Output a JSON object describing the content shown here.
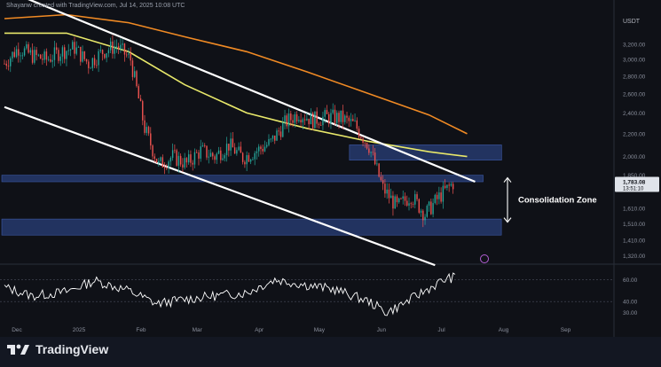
{
  "caption": "Shayanw created with TradingView.com, Jul 14, 2025 10:08 UTC",
  "brand": "TradingView",
  "currency_label": "USDT",
  "price_tag": {
    "price": "1,783.08",
    "countdown": "13:51:10"
  },
  "annotation": "Consolidation Zone",
  "colors": {
    "background": "#0f1117",
    "up": "#26a69a",
    "down": "#ef5350",
    "ma_long": "#f08a24",
    "ma_short": "#e8e86a",
    "channel": "#ffffff",
    "zone": "#2a3f7a",
    "rsi": "#ffffff"
  },
  "chart_data": [
    {
      "type": "candlestick",
      "title": "",
      "y_axis": {
        "scale": "log",
        "ticks": [
          1320,
          1410,
          1510,
          1610,
          1850,
          2000,
          2200,
          2400,
          2600,
          2800,
          3000,
          3200
        ],
        "tick_labels": [
          "1,320.00",
          "1,410.00",
          "1,510.00",
          "1,610.00",
          "1,850.00",
          "2,000.00",
          "2,200.00",
          "2,400.00",
          "2,600.00",
          "2,800.00",
          "3,000.00",
          "3,200.00"
        ]
      },
      "x_axis": {
        "start": "2024-12-01",
        "end": "2025-09-30",
        "ticks": [
          "2024-12-01",
          "2025-01-01",
          "2025-02-01",
          "2025-03-01",
          "2025-04-01",
          "2025-05-01",
          "2025-06-01",
          "2025-07-01",
          "2025-08-01",
          "2025-09-01"
        ],
        "tick_labels": [
          "Dec",
          "2025",
          "Feb",
          "Mar",
          "Apr",
          "May",
          "Jun",
          "Jul",
          "Aug",
          "Sep"
        ]
      },
      "closes": {
        "dates": [
          "2024-12-01",
          "2024-12-08",
          "2024-12-15",
          "2024-12-22",
          "2024-12-29",
          "2025-01-05",
          "2025-01-12",
          "2025-01-19",
          "2025-01-26",
          "2025-02-02",
          "2025-02-09",
          "2025-02-16",
          "2025-02-23",
          "2025-03-02",
          "2025-03-09",
          "2025-03-16",
          "2025-03-23",
          "2025-03-30",
          "2025-04-06",
          "2025-04-13",
          "2025-04-20",
          "2025-04-27",
          "2025-05-04",
          "2025-05-11",
          "2025-05-18",
          "2025-05-25",
          "2025-06-01",
          "2025-06-08",
          "2025-06-15",
          "2025-06-22",
          "2025-06-29",
          "2025-07-06",
          "2025-07-13"
        ],
        "values": [
          2950,
          3150,
          3050,
          3000,
          3100,
          3150,
          2950,
          3100,
          3180,
          3000,
          2250,
          1930,
          2000,
          1940,
          2050,
          2000,
          2100,
          1990,
          2050,
          2120,
          2300,
          2400,
          2330,
          2360,
          2350,
          2280,
          2090,
          1750,
          1620,
          1700,
          1570,
          1690,
          1790
        ]
      },
      "moving_averages": [
        {
          "dates": [
            "2024-12-01",
            "2025-01-01",
            "2025-02-01",
            "2025-03-01",
            "2025-04-01",
            "2025-05-01",
            "2025-06-01",
            "2025-07-01",
            "2025-07-20"
          ],
          "values": [
            3560,
            3620,
            3500,
            3300,
            3100,
            2850,
            2600,
            2380,
            2200
          ]
        },
        {
          "dates": [
            "2024-12-01",
            "2025-01-01",
            "2025-02-01",
            "2025-03-01",
            "2025-04-01",
            "2025-05-01",
            "2025-06-01",
            "2025-07-01",
            "2025-07-20"
          ],
          "values": [
            3350,
            3350,
            3100,
            2700,
            2400,
            2250,
            2130,
            2040,
            2000
          ]
        }
      ],
      "channel": {
        "upper": {
          "from": {
            "date": "2024-12-10",
            "price": 3900
          },
          "to": {
            "date": "2025-07-24",
            "price": 1800
          }
        },
        "lower": {
          "from": {
            "date": "2024-12-01",
            "price": 2460
          },
          "to": {
            "date": "2025-07-04",
            "price": 1270
          }
        }
      },
      "zones": [
        {
          "price_low": 1800,
          "price_high": 1850
        },
        {
          "price_low": 1970,
          "price_high": 2100
        },
        {
          "price_low": 1440,
          "price_high": 1540
        }
      ]
    },
    {
      "type": "line",
      "title": "",
      "y_axis": {
        "ticks": [
          30,
          40,
          60
        ],
        "tick_labels": [
          "30.00",
          "40.00",
          "60.00"
        ]
      },
      "x": [
        "2024-12-01",
        "2024-12-15",
        "2025-01-01",
        "2025-01-15",
        "2025-02-01",
        "2025-02-15",
        "2025-03-01",
        "2025-03-15",
        "2025-04-01",
        "2025-04-15",
        "2025-05-01",
        "2025-05-15",
        "2025-06-01",
        "2025-06-10",
        "2025-06-20",
        "2025-07-01",
        "2025-07-10",
        "2025-07-14"
      ],
      "values": [
        53,
        45,
        49,
        59,
        50,
        38,
        42,
        45,
        48,
        60,
        55,
        51,
        40,
        30,
        40,
        52,
        61,
        62
      ]
    }
  ]
}
